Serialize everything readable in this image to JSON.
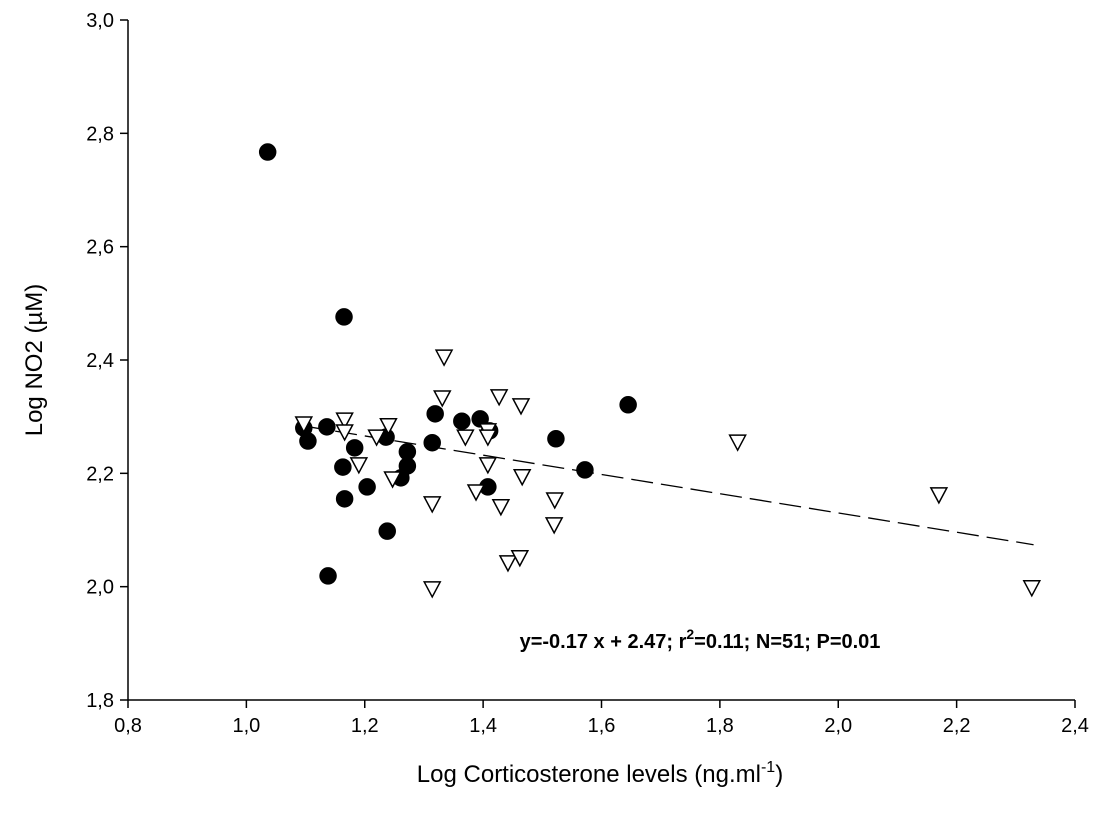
{
  "chart_data": {
    "type": "scatter",
    "y_label": "Log NO2 (µM)",
    "x_label": [
      "Log Corticosterone levels (ng.ml",
      "-1",
      ")"
    ],
    "annotation": [
      "y=-0.17 x + 2.47; r",
      "2",
      "=0.11; N=51; P=0.01"
    ],
    "xlim": [
      0.8,
      2.4
    ],
    "ylim": [
      1.8,
      3.0
    ],
    "xticks": [
      {
        "value": 0.8,
        "label": "0,8"
      },
      {
        "value": 1.0,
        "label": "1,0"
      },
      {
        "value": 1.2,
        "label": "1,2"
      },
      {
        "value": 1.4,
        "label": "1,4"
      },
      {
        "value": 1.6,
        "label": "1,6"
      },
      {
        "value": 1.8,
        "label": "1,8"
      },
      {
        "value": 2.0,
        "label": "2,0"
      },
      {
        "value": 2.2,
        "label": "2,2"
      },
      {
        "value": 2.4,
        "label": "2,4"
      }
    ],
    "yticks": [
      {
        "value": 1.8,
        "label": "1,8"
      },
      {
        "value": 2.0,
        "label": "2,0"
      },
      {
        "value": 2.2,
        "label": "2,2"
      },
      {
        "value": 2.4,
        "label": "2,4"
      },
      {
        "value": 2.6,
        "label": "2,6"
      },
      {
        "value": 2.8,
        "label": "2,8"
      },
      {
        "value": 3.0,
        "label": "3,0"
      }
    ],
    "series": [
      {
        "marker": "circle",
        "color": "#000000",
        "x": [
          1.036,
          1.165,
          1.097,
          1.104,
          1.136,
          1.183,
          1.163,
          1.166,
          1.204,
          1.236,
          1.238,
          1.138,
          1.261,
          1.272,
          1.272,
          1.319,
          1.314,
          1.364,
          1.395,
          1.411,
          1.408,
          1.523,
          1.572,
          1.645
        ],
        "values": [
          2.767,
          2.476,
          2.28,
          2.257,
          2.282,
          2.245,
          2.211,
          2.155,
          2.176,
          2.264,
          2.098,
          2.019,
          2.192,
          2.238,
          2.213,
          2.305,
          2.254,
          2.292,
          2.296,
          2.275,
          2.176,
          2.261,
          2.206,
          2.321
        ]
      },
      {
        "marker": "triangle-down",
        "color": "#ffffff",
        "x": [
          1.097,
          1.166,
          1.166,
          1.22,
          1.24,
          1.19,
          1.247,
          1.334,
          1.331,
          1.37,
          1.314,
          1.314,
          1.388,
          1.408,
          1.408,
          1.427,
          1.408,
          1.43,
          1.464,
          1.466,
          1.442,
          1.462,
          1.521,
          1.52,
          1.83,
          2.17,
          2.327
        ],
        "values": [
          2.287,
          2.294,
          2.273,
          2.264,
          2.284,
          2.215,
          2.19,
          2.405,
          2.333,
          2.264,
          2.146,
          1.996,
          2.167,
          2.275,
          2.264,
          2.335,
          2.215,
          2.141,
          2.319,
          2.194,
          2.042,
          2.051,
          2.153,
          2.109,
          2.255,
          2.162,
          1.998
        ]
      }
    ],
    "fit_line": {
      "x": [
        1.1,
        2.33
      ],
      "values": [
        2.283,
        2.074
      ]
    }
  }
}
